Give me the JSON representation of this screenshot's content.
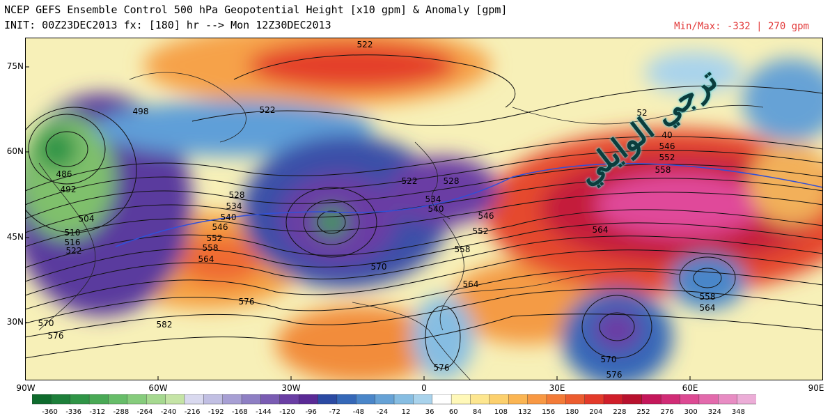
{
  "header": {
    "title_line1": "NCEP GEFS Ensemble Control 500 hPa Geopotential Height [x10 gpm] & Anomaly [gpm]",
    "title_line2": "INIT: 00Z23DEC2013 fx: [180] hr --> Mon 12Z30DEC2013",
    "minmax": "Min/Max:  -332 |   270 gpm"
  },
  "axes": {
    "lat_labels": [
      "75N",
      "60N",
      "45N",
      "30N"
    ],
    "lon_labels": [
      "90W",
      "60W",
      "30W",
      "0",
      "30E",
      "60E",
      "90E"
    ]
  },
  "contour_labels": [
    {
      "text": "522"
    },
    {
      "text": "522"
    },
    {
      "text": "498"
    },
    {
      "text": "486"
    },
    {
      "text": "492"
    },
    {
      "text": "504"
    },
    {
      "text": "510"
    },
    {
      "text": "516"
    },
    {
      "text": "522"
    },
    {
      "text": "528"
    },
    {
      "text": "534"
    },
    {
      "text": "540"
    },
    {
      "text": "546"
    },
    {
      "text": "552"
    },
    {
      "text": "558"
    },
    {
      "text": "564"
    },
    {
      "text": "576"
    },
    {
      "text": "582"
    },
    {
      "text": "570"
    },
    {
      "text": "576"
    },
    {
      "text": "522"
    },
    {
      "text": "528"
    },
    {
      "text": "534"
    },
    {
      "text": "540"
    },
    {
      "text": "546"
    },
    {
      "text": "552"
    },
    {
      "text": "558"
    },
    {
      "text": "564"
    },
    {
      "text": "570"
    },
    {
      "text": "576"
    },
    {
      "text": "52"
    },
    {
      "text": "40"
    },
    {
      "text": "546"
    },
    {
      "text": "552"
    },
    {
      "text": "558"
    },
    {
      "text": "564"
    },
    {
      "text": "558"
    },
    {
      "text": "564"
    },
    {
      "text": "570"
    },
    {
      "text": "576"
    }
  ],
  "colorbar": {
    "labels": [
      "-360",
      "-336",
      "-312",
      "-288",
      "-264",
      "-240",
      "-216",
      "-192",
      "-168",
      "-144",
      "-120",
      "-96",
      "-72",
      "-48",
      "-24",
      "12",
      "36",
      "60",
      "84",
      "108",
      "132",
      "156",
      "180",
      "204",
      "228",
      "252",
      "276",
      "300",
      "324",
      "348"
    ],
    "colors": [
      "#0e6b2d",
      "#1d7f3a",
      "#2f9446",
      "#49a955",
      "#67bd69",
      "#86cc7c",
      "#a6d990",
      "#c5e4a6",
      "#d9d9ef",
      "#c1bfe3",
      "#a79fd4",
      "#8e7fc4",
      "#7a5cb3",
      "#6a3ea4",
      "#5a2a96",
      "#2b4aa3",
      "#3568b8",
      "#4a86c9",
      "#66a2d6",
      "#86bde2",
      "#a9d3ec",
      "#ffffff",
      "#fff8b8",
      "#fde68f",
      "#fcd06d",
      "#fbb552",
      "#f89843",
      "#f37b38",
      "#ec5c2f",
      "#e33a2a",
      "#d01e2a",
      "#b8112e",
      "#c4175a",
      "#d12c76",
      "#dd4a93",
      "#e36aac",
      "#e88cc3",
      "#ecadd7"
    ]
  },
  "watermark": "ترجي الوايلي",
  "colors": {
    "minmax": "#e23a3a",
    "watermark": "#0b3d3d",
    "blue_contour": "#3050d8"
  }
}
